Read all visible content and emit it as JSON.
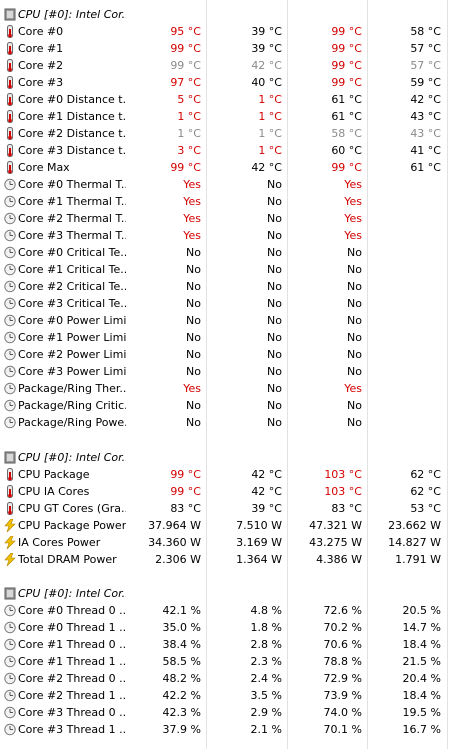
{
  "sections": [
    {
      "title": "CPU [#0]: Intel Cor...",
      "rows": [
        {
          "icon": "thermometer-icon",
          "label": "Core #0",
          "v": [
            "95 °C",
            "39 °C",
            "99 °C",
            "58 °C"
          ],
          "cls": [
            "red",
            "",
            "red",
            ""
          ]
        },
        {
          "icon": "thermometer-icon",
          "label": "Core #1",
          "v": [
            "99 °C",
            "39 °C",
            "99 °C",
            "57 °C"
          ],
          "cls": [
            "red",
            "",
            "red",
            ""
          ]
        },
        {
          "icon": "thermometer-icon",
          "label": "Core #2",
          "v": [
            "99 °C",
            "42 °C",
            "99 °C",
            "57 °C"
          ],
          "cls": [
            "gray",
            "gray",
            "red",
            "gray"
          ]
        },
        {
          "icon": "thermometer-icon",
          "label": "Core #3",
          "v": [
            "97 °C",
            "40 °C",
            "99 °C",
            "59 °C"
          ],
          "cls": [
            "red",
            "",
            "red",
            ""
          ]
        },
        {
          "icon": "thermometer-icon",
          "label": "Core #0 Distance t...",
          "v": [
            "5 °C",
            "1 °C",
            "61 °C",
            "42 °C"
          ],
          "cls": [
            "red",
            "red",
            "",
            ""
          ]
        },
        {
          "icon": "thermometer-icon",
          "label": "Core #1 Distance t...",
          "v": [
            "1 °C",
            "1 °C",
            "61 °C",
            "43 °C"
          ],
          "cls": [
            "red",
            "red",
            "",
            ""
          ]
        },
        {
          "icon": "thermometer-icon",
          "label": "Core #2 Distance t...",
          "v": [
            "1 °C",
            "1 °C",
            "58 °C",
            "43 °C"
          ],
          "cls": [
            "gray",
            "gray",
            "gray",
            "gray"
          ]
        },
        {
          "icon": "thermometer-icon",
          "label": "Core #3 Distance t...",
          "v": [
            "3 °C",
            "1 °C",
            "60 °C",
            "41 °C"
          ],
          "cls": [
            "red",
            "red",
            "",
            ""
          ]
        },
        {
          "icon": "thermometer-icon",
          "label": "Core Max",
          "v": [
            "99 °C",
            "42 °C",
            "99 °C",
            "61 °C"
          ],
          "cls": [
            "red",
            "",
            "red",
            ""
          ]
        },
        {
          "icon": "clock-icon",
          "label": "Core #0 Thermal T...",
          "v": [
            "Yes",
            "No",
            "Yes",
            ""
          ],
          "cls": [
            "red",
            "",
            "red",
            ""
          ]
        },
        {
          "icon": "clock-icon",
          "label": "Core #1 Thermal T...",
          "v": [
            "Yes",
            "No",
            "Yes",
            ""
          ],
          "cls": [
            "red",
            "",
            "red",
            ""
          ]
        },
        {
          "icon": "clock-icon",
          "label": "Core #2 Thermal T...",
          "v": [
            "Yes",
            "No",
            "Yes",
            ""
          ],
          "cls": [
            "red",
            "",
            "red",
            ""
          ]
        },
        {
          "icon": "clock-icon",
          "label": "Core #3 Thermal T...",
          "v": [
            "Yes",
            "No",
            "Yes",
            ""
          ],
          "cls": [
            "red",
            "",
            "red",
            ""
          ]
        },
        {
          "icon": "clock-icon",
          "label": "Core #0 Critical Te...",
          "v": [
            "No",
            "No",
            "No",
            ""
          ],
          "cls": [
            "",
            "",
            "",
            ""
          ]
        },
        {
          "icon": "clock-icon",
          "label": "Core #1 Critical Te...",
          "v": [
            "No",
            "No",
            "No",
            ""
          ],
          "cls": [
            "",
            "",
            "",
            ""
          ]
        },
        {
          "icon": "clock-icon",
          "label": "Core #2 Critical Te...",
          "v": [
            "No",
            "No",
            "No",
            ""
          ],
          "cls": [
            "",
            "",
            "",
            ""
          ]
        },
        {
          "icon": "clock-icon",
          "label": "Core #3 Critical Te...",
          "v": [
            "No",
            "No",
            "No",
            ""
          ],
          "cls": [
            "",
            "",
            "",
            ""
          ]
        },
        {
          "icon": "clock-icon",
          "label": "Core #0 Power Limi...",
          "v": [
            "No",
            "No",
            "No",
            ""
          ],
          "cls": [
            "",
            "",
            "",
            ""
          ]
        },
        {
          "icon": "clock-icon",
          "label": "Core #1 Power Limi...",
          "v": [
            "No",
            "No",
            "No",
            ""
          ],
          "cls": [
            "",
            "",
            "",
            ""
          ]
        },
        {
          "icon": "clock-icon",
          "label": "Core #2 Power Limi...",
          "v": [
            "No",
            "No",
            "No",
            ""
          ],
          "cls": [
            "",
            "",
            "",
            ""
          ]
        },
        {
          "icon": "clock-icon",
          "label": "Core #3 Power Limi...",
          "v": [
            "No",
            "No",
            "No",
            ""
          ],
          "cls": [
            "",
            "",
            "",
            ""
          ]
        },
        {
          "icon": "clock-icon",
          "label": "Package/Ring Ther...",
          "v": [
            "Yes",
            "No",
            "Yes",
            ""
          ],
          "cls": [
            "red",
            "",
            "red",
            ""
          ]
        },
        {
          "icon": "clock-icon",
          "label": "Package/Ring Critic...",
          "v": [
            "No",
            "No",
            "No",
            ""
          ],
          "cls": [
            "",
            "",
            "",
            ""
          ]
        },
        {
          "icon": "clock-icon",
          "label": "Package/Ring Powe...",
          "v": [
            "No",
            "No",
            "No",
            ""
          ],
          "cls": [
            "",
            "",
            "",
            ""
          ]
        }
      ]
    },
    {
      "title": "CPU [#0]: Intel Cor...",
      "rows": [
        {
          "icon": "thermometer-icon",
          "label": "CPU Package",
          "v": [
            "99 °C",
            "42 °C",
            "103 °C",
            "62 °C"
          ],
          "cls": [
            "red",
            "",
            "red",
            ""
          ]
        },
        {
          "icon": "thermometer-icon",
          "label": "CPU IA Cores",
          "v": [
            "99 °C",
            "42 °C",
            "103 °C",
            "62 °C"
          ],
          "cls": [
            "red",
            "",
            "red",
            ""
          ]
        },
        {
          "icon": "thermometer-icon",
          "label": "CPU GT Cores (Gra...",
          "v": [
            "83 °C",
            "39 °C",
            "83 °C",
            "53 °C"
          ],
          "cls": [
            "",
            "",
            "",
            ""
          ]
        },
        {
          "icon": "lightning-icon",
          "label": "CPU Package Power",
          "v": [
            "37.964 W",
            "7.510 W",
            "47.321 W",
            "23.662 W"
          ],
          "cls": [
            "",
            "",
            "",
            ""
          ]
        },
        {
          "icon": "lightning-icon",
          "label": "IA Cores Power",
          "v": [
            "34.360 W",
            "3.169 W",
            "43.275 W",
            "14.827 W"
          ],
          "cls": [
            "",
            "",
            "",
            ""
          ]
        },
        {
          "icon": "lightning-icon",
          "label": "Total DRAM Power",
          "v": [
            "2.306 W",
            "1.364 W",
            "4.386 W",
            "1.791 W"
          ],
          "cls": [
            "",
            "",
            "",
            ""
          ]
        }
      ]
    },
    {
      "title": "CPU [#0]: Intel Cor...",
      "rows": [
        {
          "icon": "clock-icon",
          "label": "Core #0 Thread 0 ...",
          "v": [
            "42.1 %",
            "4.8 %",
            "72.6 %",
            "20.5 %"
          ],
          "cls": [
            "",
            "",
            "",
            ""
          ]
        },
        {
          "icon": "clock-icon",
          "label": "Core #0 Thread 1 ...",
          "v": [
            "35.0 %",
            "1.8 %",
            "70.2 %",
            "14.7 %"
          ],
          "cls": [
            "",
            "",
            "",
            ""
          ]
        },
        {
          "icon": "clock-icon",
          "label": "Core #1 Thread 0 ...",
          "v": [
            "38.4 %",
            "2.8 %",
            "70.6 %",
            "18.4 %"
          ],
          "cls": [
            "",
            "",
            "",
            ""
          ]
        },
        {
          "icon": "clock-icon",
          "label": "Core #1 Thread 1 ...",
          "v": [
            "58.5 %",
            "2.3 %",
            "78.8 %",
            "21.5 %"
          ],
          "cls": [
            "",
            "",
            "",
            ""
          ]
        },
        {
          "icon": "clock-icon",
          "label": "Core #2 Thread 0 ...",
          "v": [
            "48.2 %",
            "2.4 %",
            "72.9 %",
            "20.4 %"
          ],
          "cls": [
            "",
            "",
            "",
            ""
          ]
        },
        {
          "icon": "clock-icon",
          "label": "Core #2 Thread 1 ...",
          "v": [
            "42.2 %",
            "3.5 %",
            "73.9 %",
            "18.4 %"
          ],
          "cls": [
            "",
            "",
            "",
            ""
          ]
        },
        {
          "icon": "clock-icon",
          "label": "Core #3 Thread 0 ...",
          "v": [
            "42.3 %",
            "2.9 %",
            "74.0 %",
            "19.5 %"
          ],
          "cls": [
            "",
            "",
            "",
            ""
          ]
        },
        {
          "icon": "clock-icon",
          "label": "Core #3 Thread 1 ...",
          "v": [
            "37.9 %",
            "2.1 %",
            "70.1 %",
            "16.7 %"
          ],
          "cls": [
            "",
            "",
            "",
            ""
          ]
        }
      ]
    }
  ]
}
